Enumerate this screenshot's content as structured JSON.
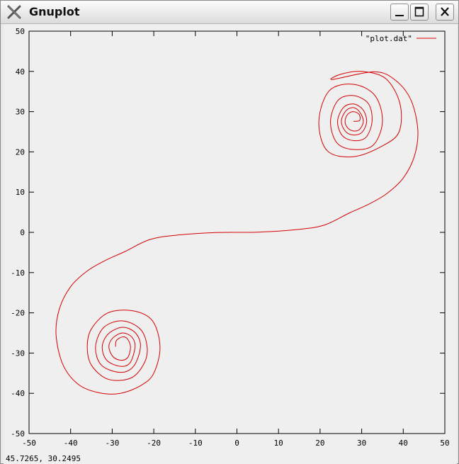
{
  "window": {
    "title": "Gnuplot",
    "app_icon": "x-logo-icon"
  },
  "controls": {
    "minimize": "minimize-icon",
    "maximize": "maximize-icon",
    "close": "close-icon"
  },
  "status": {
    "coordinates": "45.7265,  30.2495"
  },
  "colors": {
    "series": "#d40000",
    "plot_background": "#efefef"
  },
  "chart_data": {
    "type": "line",
    "title": "",
    "xlabel": "",
    "ylabel": "",
    "xlim": [
      -50,
      50
    ],
    "ylim": [
      -50,
      50
    ],
    "xticks": [
      -50,
      -40,
      -30,
      -20,
      -10,
      0,
      10,
      20,
      30,
      40,
      50
    ],
    "yticks": [
      -50,
      -40,
      -30,
      -20,
      -10,
      0,
      10,
      20,
      30,
      40,
      50
    ],
    "grid": false,
    "legend": "top-right",
    "series": [
      {
        "name": "\"plot.dat\"",
        "color": "#d40000",
        "points": [
          [
            28,
            27.6
          ],
          [
            29.5,
            27.8
          ],
          [
            29.4,
            29.3
          ],
          [
            28,
            30
          ],
          [
            26.6,
            29.3
          ],
          [
            26,
            27.6
          ],
          [
            26.6,
            26
          ],
          [
            28,
            25.2
          ],
          [
            29.5,
            25.6
          ],
          [
            30.4,
            27.6
          ],
          [
            29.6,
            29.8
          ],
          [
            28,
            31
          ],
          [
            26.2,
            30.2
          ],
          [
            25.1,
            27.6
          ],
          [
            26.1,
            25.1
          ],
          [
            28,
            24.2
          ],
          [
            30.1,
            24.9
          ],
          [
            31.2,
            27.6
          ],
          [
            30.3,
            30.5
          ],
          [
            28,
            31.9
          ],
          [
            25.6,
            31
          ],
          [
            24.2,
            27.6
          ],
          [
            25.3,
            24.1
          ],
          [
            28,
            22.8
          ],
          [
            31,
            23.6
          ],
          [
            32.5,
            27.6
          ],
          [
            31.6,
            32
          ],
          [
            28,
            34
          ],
          [
            24.3,
            32.8
          ],
          [
            22.5,
            27.6
          ],
          [
            24,
            22.3
          ],
          [
            28,
            20.6
          ],
          [
            32.8,
            21.7
          ],
          [
            35,
            27.6
          ],
          [
            33.2,
            34
          ],
          [
            28,
            36.8
          ],
          [
            22.2,
            35.2
          ],
          [
            19.7,
            27.6
          ],
          [
            21.7,
            20.3
          ],
          [
            28,
            18.8
          ],
          [
            35,
            21.5
          ],
          [
            39,
            25
          ],
          [
            39.2,
            32
          ],
          [
            35.8,
            38.2
          ],
          [
            30,
            40
          ],
          [
            25,
            39.3
          ],
          [
            23,
            38
          ],
          [
            33,
            39.9
          ],
          [
            38,
            37.9
          ],
          [
            41.8,
            33
          ],
          [
            43.5,
            25.5
          ],
          [
            42.7,
            19
          ],
          [
            40,
            13.5
          ],
          [
            36,
            9.6
          ],
          [
            31.5,
            6.9
          ],
          [
            27,
            4.8
          ],
          [
            21,
            1.8
          ],
          [
            14.5,
            0.7
          ],
          [
            5,
            0.05
          ],
          [
            -5,
            -0.05
          ],
          [
            -14.5,
            -0.7
          ],
          [
            -21,
            -1.8
          ],
          [
            -27,
            -4.8
          ],
          [
            -31.5,
            -6.9
          ],
          [
            -36,
            -9.6
          ],
          [
            -40,
            -13.5
          ],
          [
            -42.7,
            -19
          ],
          [
            -43.5,
            -25.5
          ],
          [
            -41.8,
            -33
          ],
          [
            -38,
            -37.9
          ],
          [
            -33,
            -39.9
          ],
          [
            -28,
            -40
          ],
          [
            -23,
            -38
          ],
          [
            -20,
            -35
          ],
          [
            -18.5,
            -28.5
          ],
          [
            -20.3,
            -22
          ],
          [
            -25,
            -19.5
          ],
          [
            -31,
            -20
          ],
          [
            -35,
            -24
          ],
          [
            -36,
            -28.4
          ],
          [
            -35,
            -33
          ],
          [
            -31,
            -36.5
          ],
          [
            -25.5,
            -36.2
          ],
          [
            -22.3,
            -32.5
          ],
          [
            -21.6,
            -28.4
          ],
          [
            -23.2,
            -24.1
          ],
          [
            -27.5,
            -22
          ],
          [
            -32,
            -23.6
          ],
          [
            -34,
            -28.4
          ],
          [
            -32.6,
            -33
          ],
          [
            -28,
            -34.8
          ],
          [
            -24.8,
            -33.2
          ],
          [
            -23.2,
            -28.4
          ],
          [
            -24.4,
            -25
          ],
          [
            -27.5,
            -23.6
          ],
          [
            -30.9,
            -25.2
          ],
          [
            -32.4,
            -28.4
          ],
          [
            -31.3,
            -31.8
          ],
          [
            -28,
            -33.3
          ],
          [
            -25.7,
            -32.4
          ],
          [
            -24.5,
            -28.4
          ],
          [
            -25.3,
            -26
          ],
          [
            -27.5,
            -25
          ],
          [
            -29.8,
            -26.2
          ],
          [
            -30.8,
            -28.4
          ],
          [
            -29.8,
            -30.9
          ],
          [
            -27.8,
            -31.8
          ],
          [
            -26.2,
            -31
          ],
          [
            -25.6,
            -28.4
          ],
          [
            -26.4,
            -26.4
          ],
          [
            -27.6,
            -26
          ],
          [
            -29,
            -26.9
          ],
          [
            -29.2,
            -28.4
          ]
        ]
      }
    ]
  }
}
